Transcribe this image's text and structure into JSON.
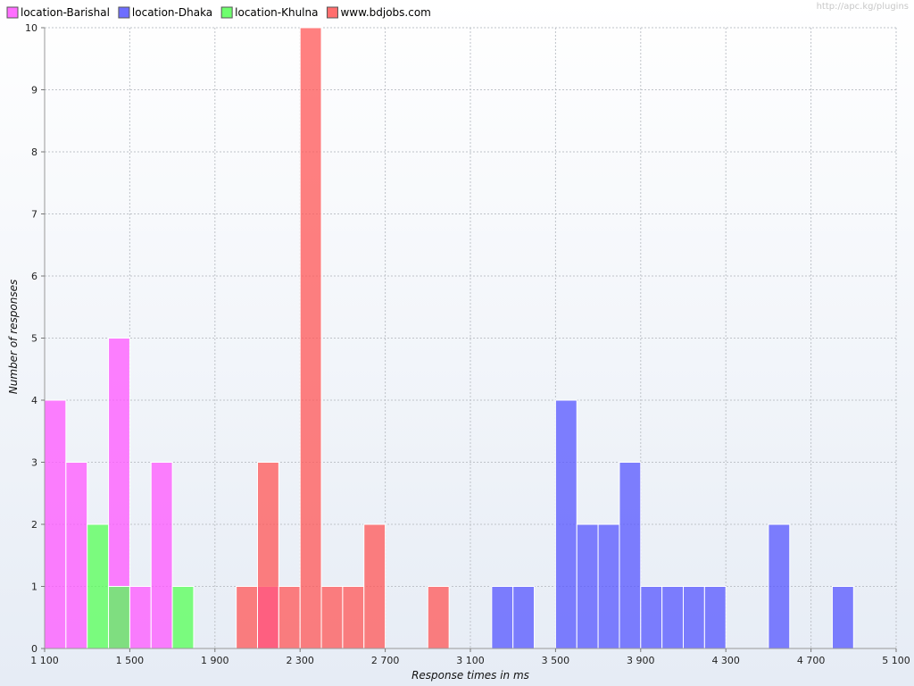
{
  "watermark": "http://apc.kg/plugins",
  "chart_data": {
    "type": "bar",
    "xlabel": "Response times in ms",
    "ylabel": "Number of responses",
    "xlim": [
      1100,
      5100
    ],
    "ylim": [
      0,
      10
    ],
    "x_ticks": [
      1100,
      1500,
      1900,
      2300,
      2700,
      3100,
      3500,
      3900,
      4300,
      4700,
      5100
    ],
    "x_tick_labels": [
      "1 100",
      "1 500",
      "1 900",
      "2 300",
      "2 700",
      "3 100",
      "3 500",
      "3 900",
      "4 300",
      "4 700",
      "5 100"
    ],
    "y_ticks": [
      0,
      1,
      2,
      3,
      4,
      5,
      6,
      7,
      8,
      9,
      10
    ],
    "y_tick_labels": [
      "0",
      "1",
      "2",
      "3",
      "4",
      "5",
      "6",
      "7",
      "8",
      "9",
      "10"
    ],
    "bin_width": 100,
    "grid": true,
    "legend_position": "top-left",
    "series": [
      {
        "name": "location-Barishal",
        "color": "#ff55ff",
        "bins": [
          {
            "x": 1100,
            "y": 4
          },
          {
            "x": 1200,
            "y": 3
          },
          {
            "x": 1400,
            "y": 5
          },
          {
            "x": 1500,
            "y": 1
          },
          {
            "x": 1600,
            "y": 3
          },
          {
            "x": 2100,
            "y": 1
          }
        ]
      },
      {
        "name": "location-Dhaka",
        "color": "#5555ff",
        "bins": [
          {
            "x": 3200,
            "y": 1
          },
          {
            "x": 3300,
            "y": 1
          },
          {
            "x": 3500,
            "y": 4
          },
          {
            "x": 3600,
            "y": 2
          },
          {
            "x": 3700,
            "y": 2
          },
          {
            "x": 3800,
            "y": 3
          },
          {
            "x": 3900,
            "y": 1
          },
          {
            "x": 4000,
            "y": 1
          },
          {
            "x": 4100,
            "y": 1
          },
          {
            "x": 4200,
            "y": 1
          },
          {
            "x": 4500,
            "y": 2
          },
          {
            "x": 4800,
            "y": 1
          }
        ]
      },
      {
        "name": "location-Khulna",
        "color": "#55ff55",
        "bins": [
          {
            "x": 1300,
            "y": 2
          },
          {
            "x": 1400,
            "y": 1
          },
          {
            "x": 1700,
            "y": 1
          }
        ]
      },
      {
        "name": "www.bdjobs.com",
        "color": "#ff5555",
        "bins": [
          {
            "x": 2000,
            "y": 1
          },
          {
            "x": 2100,
            "y": 3
          },
          {
            "x": 2200,
            "y": 1
          },
          {
            "x": 2300,
            "y": 10
          },
          {
            "x": 2400,
            "y": 1
          },
          {
            "x": 2500,
            "y": 1
          },
          {
            "x": 2600,
            "y": 2
          },
          {
            "x": 2900,
            "y": 1
          }
        ]
      }
    ]
  }
}
